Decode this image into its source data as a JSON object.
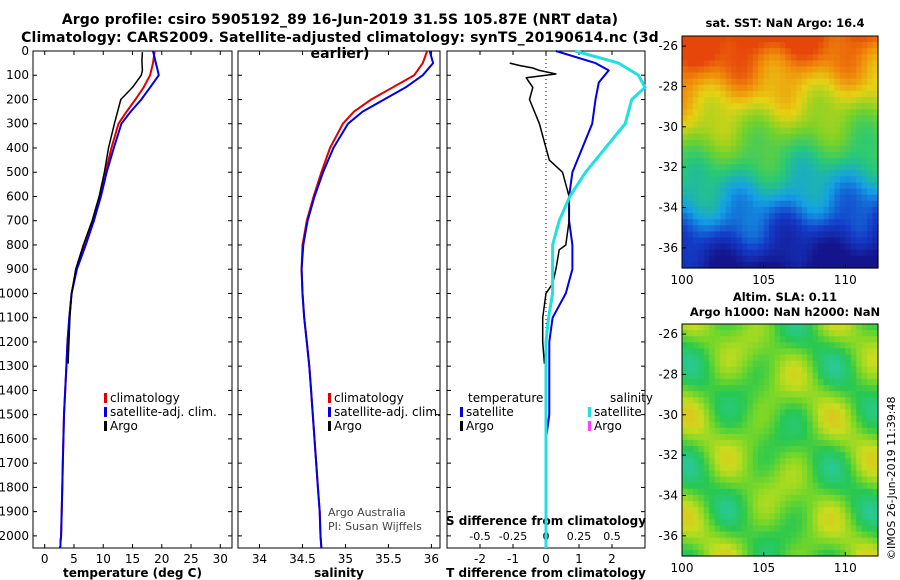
{
  "header": {
    "title_line1": "Argo profile: csiro 5905192_89 16-Jun-2019 31.5S 105.87E (NRT data)",
    "title_line2": "Climatology: CARS2009. Satellite-adjusted climatology: synTS_20190614.nc (3d earlier)"
  },
  "footer": {
    "stamp": "©IMOS 26-Jun-2019 11:39:48"
  },
  "colors": {
    "climatology": "#e00000",
    "satellite": "#0000e0",
    "argo": "#000000",
    "sal_satellite": "#20e0e0",
    "sal_argo": "#ff40ff"
  },
  "chart_data": [
    {
      "id": "temperature",
      "type": "line",
      "xlabel": "temperature (deg C)",
      "ylabel": "depth",
      "xlim": [
        -2,
        32
      ],
      "ylim": [
        2050,
        0
      ],
      "xticks": [
        0,
        5,
        10,
        15,
        20,
        25,
        30
      ],
      "yticks": [
        0,
        100,
        200,
        300,
        400,
        500,
        600,
        700,
        800,
        900,
        1000,
        1100,
        1200,
        1300,
        1400,
        1500,
        1600,
        1700,
        1800,
        1900,
        2000
      ],
      "legend": [
        "climatology",
        "satellite-adj. clim.",
        "Argo"
      ],
      "series": [
        {
          "name": "climatology",
          "x": [
            18.8,
            18.5,
            18.0,
            16.9,
            15.5,
            14.0,
            12.6,
            11.4,
            10.4,
            9.5,
            8.2,
            6.8,
            5.4,
            4.6,
            4.2,
            3.9,
            3.7,
            3.5,
            3.3,
            3.2,
            3.1,
            3.0,
            2.9,
            2.8,
            2.7,
            2.7,
            2.6
          ],
          "y": [
            0,
            50,
            100,
            150,
            200,
            250,
            300,
            400,
            500,
            600,
            700,
            800,
            900,
            1000,
            1100,
            1200,
            1300,
            1400,
            1500,
            1600,
            1700,
            1800,
            1900,
            2000,
            2025,
            2040,
            2050
          ]
        },
        {
          "name": "satellite-adj. clim.",
          "x": [
            18.5,
            19.0,
            19.5,
            18.0,
            16.5,
            14.7,
            13.1,
            11.8,
            10.6,
            9.6,
            8.4,
            7.0,
            5.5,
            4.6,
            4.2,
            3.9,
            3.7,
            3.5,
            3.3,
            3.2,
            3.1,
            3.0,
            2.9,
            2.8,
            2.7,
            2.7,
            2.6
          ],
          "y": [
            0,
            50,
            100,
            150,
            200,
            250,
            300,
            400,
            500,
            600,
            700,
            800,
            900,
            1000,
            1100,
            1200,
            1300,
            1400,
            1500,
            1600,
            1700,
            1800,
            1900,
            2000,
            2025,
            2040,
            2050
          ]
        },
        {
          "name": "Argo",
          "x": [
            16.7,
            16.6,
            16.7,
            16.5,
            15.0,
            13.0,
            11.9,
            10.9,
            10.2,
            9.3,
            8.1,
            6.6,
            5.3,
            4.6,
            4.3,
            4.0
          ],
          "y": [
            5,
            40,
            80,
            100,
            150,
            200,
            300,
            400,
            500,
            600,
            700,
            800,
            900,
            1000,
            1100,
            1290
          ]
        }
      ]
    },
    {
      "id": "salinity",
      "type": "line",
      "xlabel": "salinity",
      "xlim": [
        33.75,
        36.1
      ],
      "ylim": [
        2050,
        0
      ],
      "xticks": [
        34,
        34.5,
        35,
        35.5,
        36
      ],
      "legend": [
        "climatology",
        "satellite-adj. clim.",
        "Argo"
      ],
      "annotation": [
        "Argo Australia",
        "PI: Susan Wijffels"
      ],
      "series": [
        {
          "name": "climatology",
          "x": [
            35.95,
            35.9,
            35.8,
            35.55,
            35.3,
            35.1,
            34.97,
            34.82,
            34.72,
            34.63,
            34.55,
            34.5,
            34.49,
            34.5,
            34.52,
            34.55,
            34.58,
            34.6,
            34.62,
            34.64,
            34.66,
            34.68,
            34.7,
            34.71,
            34.72
          ],
          "y": [
            0,
            50,
            100,
            150,
            200,
            250,
            300,
            400,
            500,
            600,
            700,
            800,
            900,
            1000,
            1100,
            1200,
            1300,
            1400,
            1500,
            1600,
            1700,
            1800,
            1900,
            2000,
            2050
          ]
        },
        {
          "name": "satellite-adj. clim.",
          "x": [
            35.98,
            36.02,
            35.9,
            35.7,
            35.45,
            35.2,
            35.03,
            34.86,
            34.74,
            34.64,
            34.56,
            34.51,
            34.49,
            34.5,
            34.52,
            34.55,
            34.58,
            34.6,
            34.62,
            34.64,
            34.66,
            34.68,
            34.7,
            34.71,
            34.72
          ],
          "y": [
            0,
            50,
            100,
            150,
            200,
            250,
            300,
            400,
            500,
            600,
            700,
            800,
            900,
            1000,
            1100,
            1200,
            1300,
            1400,
            1500,
            1600,
            1700,
            1800,
            1900,
            2000,
            2050
          ]
        }
      ]
    },
    {
      "id": "difference",
      "type": "line",
      "xlabel": "T difference from climatology",
      "xlabel_top": "S difference from climatology",
      "xlim": [
        -3,
        3
      ],
      "ylim": [
        2050,
        0
      ],
      "xticks": [
        -2,
        -1,
        0,
        1,
        2
      ],
      "xticks_top_labels": [
        "-0.5",
        "-0.25",
        "0",
        "0.25",
        "0.5"
      ],
      "legend_temperature": {
        "title": "temperature",
        "items": [
          "satellite",
          "Argo"
        ]
      },
      "legend_salinity": {
        "title": "salinity",
        "items": [
          "satellite",
          "Argo"
        ]
      },
      "series": [
        {
          "name": "T satellite",
          "x": [
            0.3,
            1.5,
            1.9,
            1.6,
            1.5,
            1.4,
            1.1,
            0.8,
            0.7,
            0.7,
            0.8,
            0.8,
            0.6,
            0.2,
            0.1,
            0.1,
            0.1,
            0.1,
            0.0,
            0.0,
            0.0,
            0.0,
            0.0,
            0.0,
            0.0
          ],
          "y": [
            0,
            50,
            80,
            130,
            200,
            300,
            400,
            500,
            600,
            700,
            800,
            900,
            1000,
            1100,
            1200,
            1300,
            1400,
            1500,
            1600,
            1700,
            1800,
            1900,
            2000,
            2040,
            2050
          ]
        },
        {
          "name": "T Argo",
          "x": [
            -1.1,
            -0.8,
            -0.4,
            -0.2,
            0.3,
            -0.6,
            -0.4,
            -0.5,
            -0.2,
            0.0,
            0.1,
            0.5,
            0.6,
            0.7,
            0.7,
            0.6,
            0.4,
            0.3,
            0.2,
            0.0,
            -0.1,
            -0.1,
            -0.05
          ],
          "y": [
            50,
            60,
            70,
            80,
            95,
            110,
            150,
            200,
            300,
            400,
            450,
            500,
            550,
            600,
            700,
            800,
            820,
            900,
            960,
            1000,
            1100,
            1200,
            1290
          ]
        },
        {
          "name": "S satellite",
          "x": [
            0.22,
            0.55,
            0.7,
            0.75,
            0.65,
            0.6,
            0.45,
            0.3,
            0.18,
            0.1,
            0.05,
            0.05,
            0.05,
            0.02,
            0.0,
            0.0,
            0.0,
            0.0,
            0.0
          ],
          "y": [
            0,
            50,
            100,
            150,
            200,
            300,
            400,
            500,
            600,
            700,
            800,
            900,
            1000,
            1100,
            1200,
            1400,
            1600,
            1800,
            2050
          ]
        }
      ]
    },
    {
      "id": "sst_map",
      "type": "heatmap",
      "title": "sat. SST: NaN Argo: 16.4",
      "xlim": [
        100,
        112
      ],
      "ylim": [
        -37,
        -25.5
      ],
      "xticks": [
        100,
        105,
        110
      ],
      "yticks": [
        -26,
        -28,
        -30,
        -32,
        -34,
        -36
      ]
    },
    {
      "id": "sla_map",
      "type": "heatmap",
      "title_line1": "Altim. SLA: 0.11",
      "title_line2": "Argo h1000: NaN h2000: NaN",
      "xlim": [
        100,
        112
      ],
      "ylim": [
        -37,
        -25.5
      ],
      "xticks": [
        100,
        105,
        110
      ],
      "yticks": [
        -26,
        -28,
        -30,
        -32,
        -34,
        -36
      ]
    }
  ]
}
